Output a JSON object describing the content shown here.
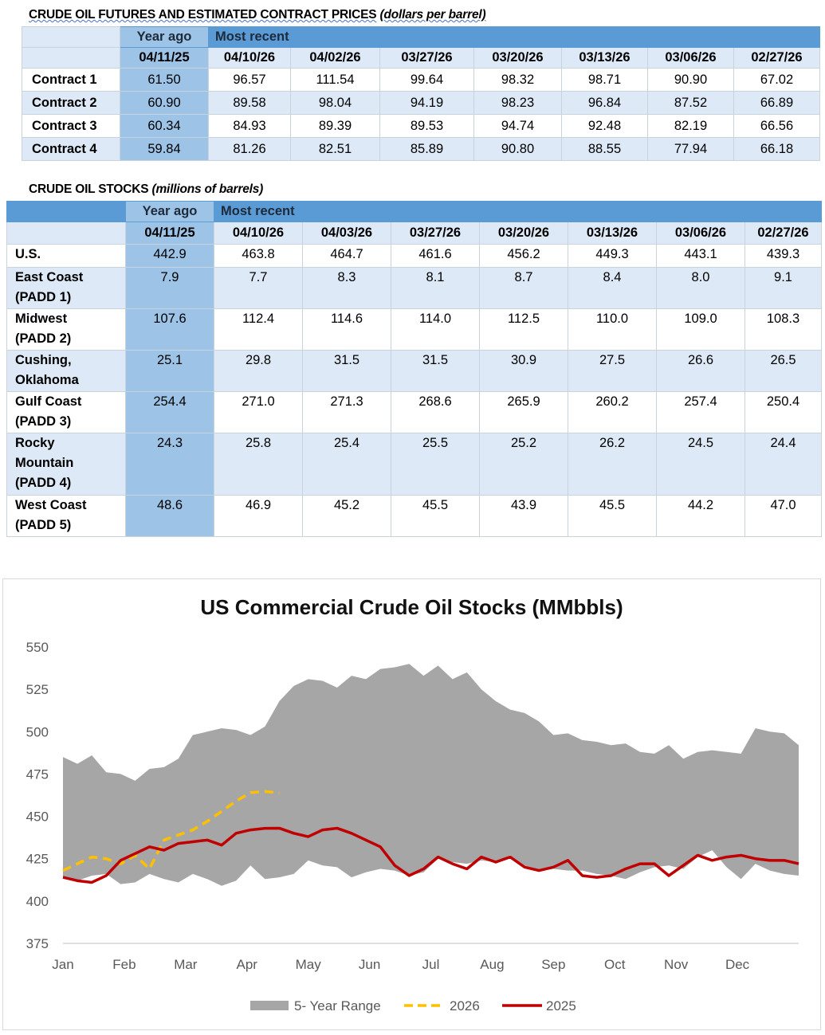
{
  "prices": {
    "title": "CRUDE OIL FUTURES AND ESTIMATED CONTRACT PRICES",
    "units": "(dollars per barrel)",
    "year_ago_label": "Year ago",
    "most_recent_label": "Most recent",
    "dates": [
      "04/11/25",
      "04/10/26",
      "04/02/26",
      "03/27/26",
      "03/20/26",
      "03/13/26",
      "03/06/26",
      "02/27/26"
    ],
    "rows": [
      {
        "label": "Contract 1",
        "values": [
          "61.50",
          "96.57",
          "111.54",
          "99.64",
          "98.32",
          "98.71",
          "90.90",
          "67.02"
        ]
      },
      {
        "label": "Contract 2",
        "values": [
          "60.90",
          "89.58",
          "98.04",
          "94.19",
          "98.23",
          "96.84",
          "87.52",
          "66.89"
        ]
      },
      {
        "label": "Contract 3",
        "values": [
          "60.34",
          "84.93",
          "89.39",
          "89.53",
          "94.74",
          "92.48",
          "82.19",
          "66.56"
        ]
      },
      {
        "label": "Contract 4",
        "values": [
          "59.84",
          "81.26",
          "82.51",
          "85.89",
          "90.80",
          "88.55",
          "77.94",
          "66.18"
        ]
      }
    ]
  },
  "stocks": {
    "title": "CRUDE OIL STOCKS",
    "units": "(millions of barrels)",
    "year_ago_label": "Year ago",
    "most_recent_label": "Most recent",
    "dates": [
      "04/11/25",
      "04/10/26",
      "04/03/26",
      "03/27/26",
      "03/20/26",
      "03/13/26",
      "03/06/26",
      "02/27/26"
    ],
    "rows": [
      {
        "label_lines": [
          "U.S."
        ],
        "values": [
          "442.9",
          "463.8",
          "464.7",
          "461.6",
          "456.2",
          "449.3",
          "443.1",
          "439.3"
        ]
      },
      {
        "label_lines": [
          "East Coast",
          "(PADD 1)"
        ],
        "values": [
          "7.9",
          "7.7",
          "8.3",
          "8.1",
          "8.7",
          "8.4",
          "8.0",
          "9.1"
        ]
      },
      {
        "label_lines": [
          "Midwest",
          "(PADD 2)"
        ],
        "values": [
          "107.6",
          "112.4",
          "114.6",
          "114.0",
          "112.5",
          "110.0",
          "109.0",
          "108.3"
        ]
      },
      {
        "label_lines": [
          "Cushing,",
          "Oklahoma"
        ],
        "values": [
          "25.1",
          "29.8",
          "31.5",
          "31.5",
          "30.9",
          "27.5",
          "26.6",
          "26.5"
        ]
      },
      {
        "label_lines": [
          "Gulf Coast",
          "(PADD 3)"
        ],
        "values": [
          "254.4",
          "271.0",
          "271.3",
          "268.6",
          "265.9",
          "260.2",
          "257.4",
          "250.4"
        ]
      },
      {
        "label_lines": [
          "Rocky",
          "Mountain",
          "(PADD 4)"
        ],
        "values": [
          "24.3",
          "25.8",
          "25.4",
          "25.5",
          "25.2",
          "26.2",
          "24.5",
          "24.4"
        ]
      },
      {
        "label_lines": [
          "West Coast",
          "(PADD 5)"
        ],
        "values": [
          "48.6",
          "46.9",
          "45.2",
          "45.5",
          "43.9",
          "45.5",
          "44.2",
          "47.0"
        ]
      }
    ]
  },
  "chart_data": {
    "type": "area",
    "title": "US Commercial Crude Oil Stocks (MMbbls)",
    "xlabel": "",
    "ylabel": "",
    "ylim": [
      375,
      550
    ],
    "yticks": [
      375,
      400,
      425,
      450,
      475,
      500,
      525,
      550
    ],
    "xticks": [
      "Jan",
      "Feb",
      "Mar",
      "Apr",
      "May",
      "Jun",
      "Jul",
      "Aug",
      "Sep",
      "Oct",
      "Nov",
      "Dec"
    ],
    "x_unit": "week of year",
    "legend": [
      "5- Year Range",
      "2026",
      "2025"
    ],
    "legend_position": "bottom",
    "colors": {
      "range": "#a6a6a6",
      "y2026": "#ffc000",
      "y2025": "#c00000"
    },
    "series": [
      {
        "name": "5- Year Range",
        "kind": "band",
        "high": [
          485,
          481,
          486,
          476,
          475,
          471,
          478,
          479,
          484,
          498,
          500,
          502,
          501,
          498,
          503,
          518,
          527,
          531,
          530,
          526,
          533,
          531,
          537,
          538,
          540,
          533,
          539,
          531,
          535,
          525,
          518,
          513,
          511,
          506,
          498,
          499,
          495,
          494,
          492,
          493,
          488,
          487,
          492,
          484,
          488,
          489,
          488,
          487,
          502,
          500,
          499,
          492
        ],
        "low": [
          414,
          412,
          415,
          416,
          410,
          411,
          416,
          413,
          411,
          416,
          413,
          409,
          412,
          421,
          413,
          414,
          416,
          424,
          421,
          420,
          414,
          417,
          419,
          418,
          415,
          417,
          425,
          423,
          422,
          424,
          423,
          427,
          421,
          418,
          419,
          418,
          418,
          416,
          415,
          413,
          417,
          420,
          421,
          419,
          426,
          430,
          420,
          413,
          422,
          418,
          416,
          415
        ]
      },
      {
        "name": "2026",
        "kind": "dashed-line",
        "values": [
          418,
          422,
          426,
          425,
          422,
          427,
          419,
          436,
          439,
          442,
          447,
          453,
          459,
          464,
          464.7,
          463.8
        ]
      },
      {
        "name": "2025",
        "kind": "line",
        "values": [
          414,
          412,
          411,
          415,
          424,
          428,
          432,
          430,
          434,
          435,
          436,
          433,
          440,
          442,
          442.9,
          443,
          440,
          438,
          442,
          443,
          440,
          436,
          432,
          421,
          415,
          419,
          426,
          422,
          419,
          426,
          423,
          426,
          420,
          418,
          420,
          424,
          415,
          414,
          415,
          419,
          422,
          422,
          415,
          421,
          427,
          424,
          426,
          427,
          425,
          424,
          424,
          422
        ]
      }
    ]
  }
}
